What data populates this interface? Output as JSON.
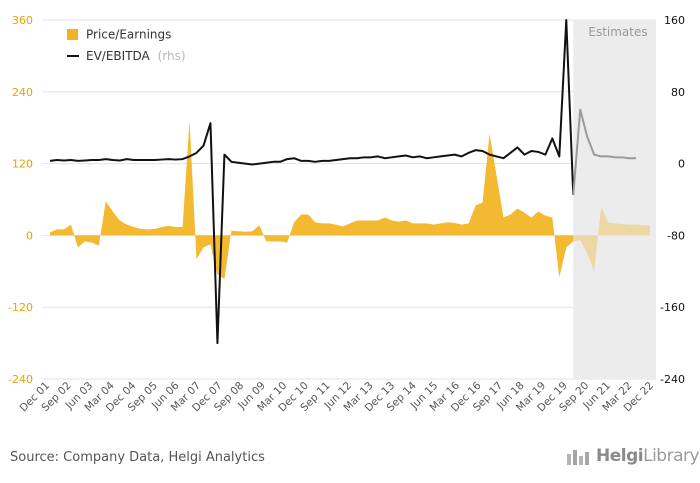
{
  "chart_data": {
    "type": "area",
    "estimates_label": "Estimates",
    "legend": [
      {
        "name": "Price/Earnings",
        "label": "Price/Earnings",
        "sub": "",
        "color": "#f2b320"
      },
      {
        "name": "EV/EBITDA",
        "label": "EV/EBITDA",
        "sub": "(rhs)",
        "color": "#111111"
      }
    ],
    "left_axis": {
      "min": -240,
      "max": 360,
      "ticks": [
        "360",
        "240",
        "120",
        "0",
        "-120",
        "-240"
      ],
      "color": "#e8a200"
    },
    "right_axis": {
      "min": -240,
      "max": 160,
      "ticks": [
        "160",
        "80",
        "0",
        "-80",
        "-160",
        "-240"
      ],
      "color": "#111111"
    },
    "x_labels": [
      "Dec 01",
      "Sep 02",
      "Jun 03",
      "Mar 04",
      "Dec 04",
      "Sep 05",
      "Jun 06",
      "Mar 07",
      "Dec 07",
      "Sep 08",
      "Jun 09",
      "Mar 10",
      "Dec 10",
      "Sep 11",
      "Jun 12",
      "Mar 13",
      "Dec 13",
      "Sep 14",
      "Jun 15",
      "Mar 16",
      "Dec 16",
      "Sep 17",
      "Jun 18",
      "Mar 19",
      "Dec 19",
      "Sep 20",
      "Jun 21",
      "Mar 22",
      "Dec 22"
    ],
    "estimate_start": "Sep 20",
    "series": [
      {
        "name": "Price/Earnings",
        "axis": "left",
        "values": [
          5,
          10,
          10,
          18,
          -20,
          -10,
          -12,
          -17,
          57,
          40,
          25,
          18,
          14,
          11,
          10,
          11,
          14,
          16,
          14,
          14,
          192,
          -40,
          -20,
          -15,
          -65,
          -73,
          8,
          7,
          6,
          7,
          17,
          -10,
          -10,
          -10,
          -12,
          22,
          35,
          35,
          22,
          20,
          20,
          18,
          15,
          20,
          25,
          25,
          25,
          25,
          30,
          25,
          23,
          25,
          20,
          20,
          20,
          18,
          20,
          22,
          21,
          18,
          20,
          50,
          55,
          170,
          100,
          30,
          35,
          45,
          38,
          30,
          40,
          33,
          30,
          -70,
          -20,
          -10,
          -8,
          -30,
          -60,
          48,
          22,
          20,
          19,
          18,
          18,
          17,
          17
        ],
        "estimate_values": [
          -8,
          -30,
          -60,
          48,
          22,
          20,
          19,
          18,
          18,
          17,
          17
        ]
      },
      {
        "name": "EV/EBITDA",
        "axis": "right",
        "values": [
          3,
          4,
          3.5,
          4,
          3,
          3.5,
          4,
          4,
          5,
          4,
          3.5,
          5,
          4,
          4,
          4,
          4,
          4.5,
          5,
          4.5,
          5,
          8,
          12,
          20,
          45,
          -200,
          10,
          2,
          1,
          0,
          -1,
          0,
          1,
          2,
          2,
          5,
          6,
          3,
          3,
          2,
          3,
          3,
          4,
          5,
          6,
          6,
          7,
          7,
          8,
          6,
          7,
          8,
          9,
          7,
          8,
          6,
          7,
          8,
          9,
          10,
          8,
          12,
          15,
          14,
          10,
          8,
          6,
          12,
          18,
          10,
          14,
          13,
          10,
          28,
          8,
          160,
          -35,
          60,
          30,
          10,
          8,
          8,
          7,
          7,
          6,
          6
        ]
      }
    ]
  },
  "footer": {
    "source": "Source: Company Data, Helgi Analytics",
    "logo_prefix": "Helgi",
    "logo_suffix": "Library"
  }
}
